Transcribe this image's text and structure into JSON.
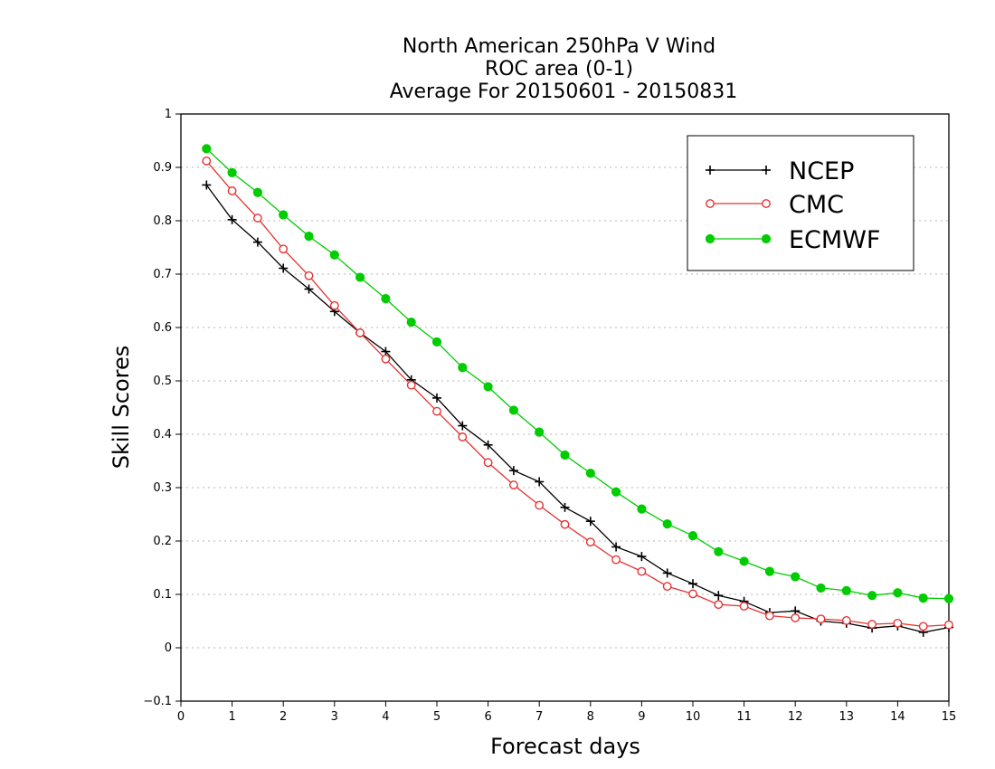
{
  "chart_data": {
    "type": "line",
    "title": [
      "North American 250hPa V Wind",
      "ROC area (0-1)",
      "Average For 20150601 - 20150831"
    ],
    "xlabel": "Forecast days",
    "ylabel": "Skill Scores",
    "xlim": [
      0,
      15
    ],
    "ylim": [
      -0.1,
      1
    ],
    "xticks": [
      "0",
      "1",
      "2",
      "3",
      "4",
      "5",
      "6",
      "7",
      "8",
      "9",
      "10",
      "11",
      "12",
      "13",
      "14",
      "15"
    ],
    "yticks": [
      "−0.1",
      "0",
      "0.1",
      "0.2",
      "0.3",
      "0.4",
      "0.5",
      "0.6",
      "0.7",
      "0.8",
      "0.9",
      "1"
    ],
    "grid": true,
    "legend_position": "top-right",
    "x": [
      0.5,
      1,
      1.5,
      2,
      2.5,
      3,
      3.5,
      4,
      4.5,
      5,
      5.5,
      6,
      6.5,
      7,
      7.5,
      8,
      8.5,
      9,
      9.5,
      10,
      10.5,
      11,
      11.5,
      12,
      12.5,
      13,
      13.5,
      14,
      14.5,
      15
    ],
    "series": [
      {
        "name": "NCEP",
        "color": "#000000",
        "marker": "plus",
        "values": [
          0.867,
          0.802,
          0.76,
          0.711,
          0.672,
          0.63,
          0.59,
          0.555,
          0.502,
          0.468,
          0.416,
          0.38,
          0.332,
          0.311,
          0.263,
          0.237,
          0.189,
          0.171,
          0.14,
          0.12,
          0.098,
          0.087,
          0.066,
          0.069,
          0.05,
          0.046,
          0.037,
          0.041,
          0.029,
          0.038
        ]
      },
      {
        "name": "CMC",
        "color": "#e63232",
        "marker": "open-circle",
        "values": [
          0.912,
          0.856,
          0.805,
          0.747,
          0.697,
          0.641,
          0.59,
          0.541,
          0.492,
          0.443,
          0.395,
          0.347,
          0.305,
          0.267,
          0.231,
          0.198,
          0.165,
          0.143,
          0.115,
          0.101,
          0.081,
          0.078,
          0.06,
          0.056,
          0.054,
          0.051,
          0.044,
          0.046,
          0.04,
          0.043
        ]
      },
      {
        "name": "ECMWF",
        "color": "#00cc00",
        "marker": "filled-circle",
        "values": [
          0.935,
          0.89,
          0.853,
          0.811,
          0.771,
          0.736,
          0.694,
          0.654,
          0.61,
          0.573,
          0.525,
          0.489,
          0.445,
          0.404,
          0.361,
          0.327,
          0.292,
          0.26,
          0.232,
          0.21,
          0.18,
          0.162,
          0.143,
          0.133,
          0.112,
          0.107,
          0.098,
          0.103,
          0.093,
          0.092
        ]
      }
    ]
  }
}
